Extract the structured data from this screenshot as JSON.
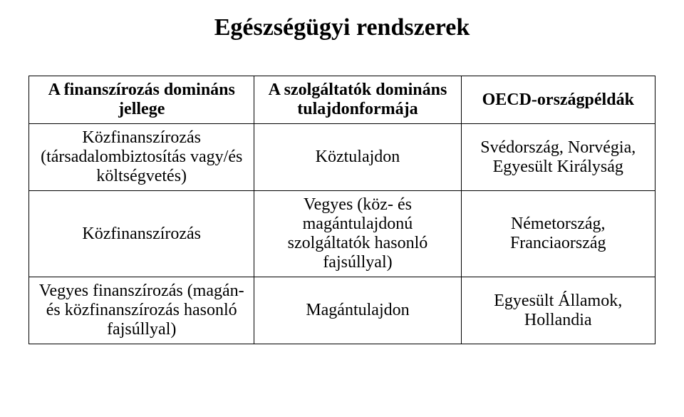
{
  "title": "Egészségügyi rendszerek",
  "table": {
    "columns": [
      "A finanszírozás domináns jellege",
      "A szolgáltatók domináns tulajdonformája",
      "OECD-országpéldák"
    ],
    "rows": [
      [
        "Közfinanszírozás (társadalombiztosítás vagy/és költségvetés)",
        "Köztulajdon",
        "Svédország, Norvégia, Egyesült Királyság"
      ],
      [
        "Közfinanszírozás",
        "Vegyes\n(köz- és magántulajdonú szolgáltatók hasonló fajsúllyal)",
        "Németország, Franciaország"
      ],
      [
        "Vegyes finanszírozás (magán- és közfinanszírozás hasonló fajsúllyal)",
        "Magántulajdon",
        "Egyesült Államok, Hollandia"
      ]
    ],
    "column_widths": [
      "36%",
      "33%",
      "31%"
    ],
    "font_family": "Times New Roman",
    "header_fontsize": 24,
    "cell_fontsize": 24,
    "title_fontsize": 34,
    "border_color": "#000000",
    "background_color": "#ffffff",
    "text_color": "#000000"
  }
}
